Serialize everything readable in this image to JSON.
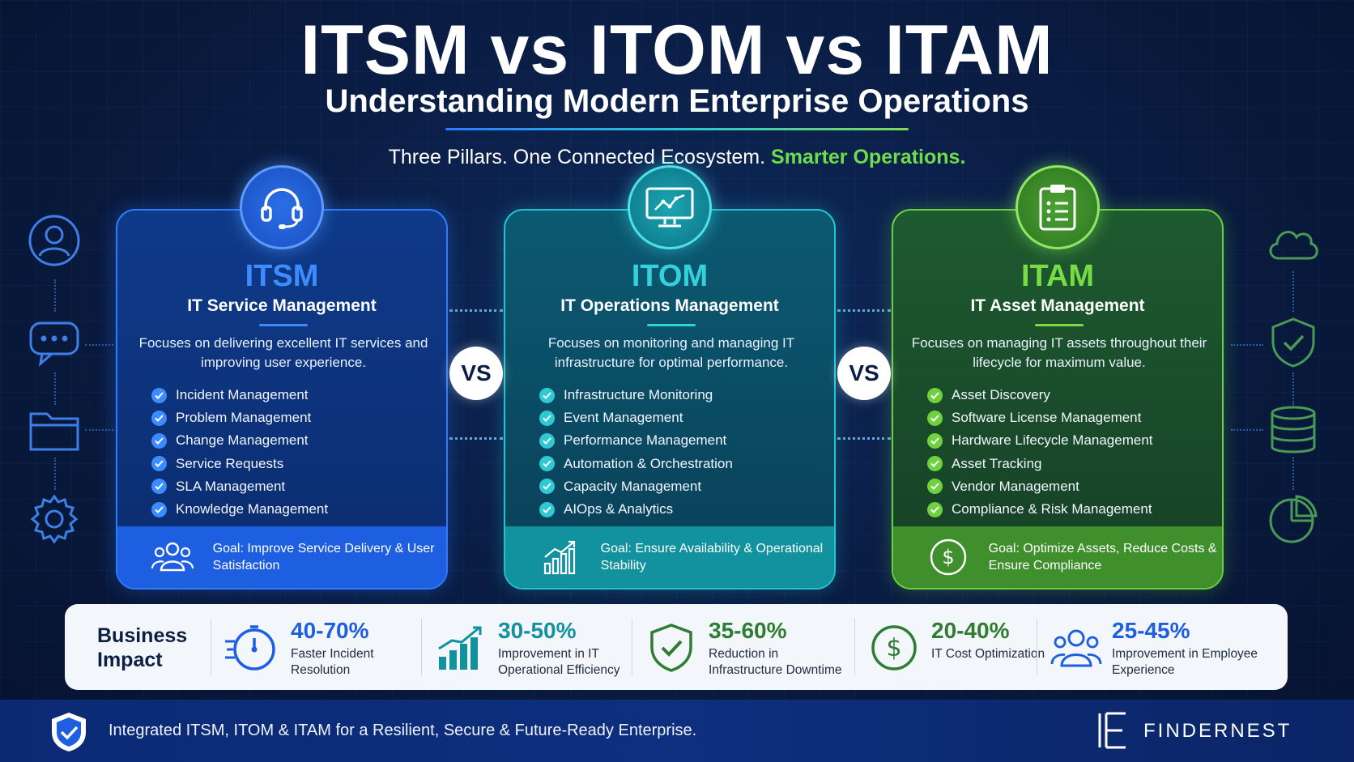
{
  "header": {
    "title": "ITSM vs ITOM vs ITAM",
    "subtitle": "Understanding Modern Enterprise Operations",
    "tagline_main": "Three Pillars. One Connected Ecosystem.",
    "tagline_accent": "Smarter Operations."
  },
  "side_icons": {
    "left": [
      "user-icon",
      "chat-bubble-icon",
      "folder-icon",
      "gear-icon"
    ],
    "right": [
      "cloud-icon",
      "shield-check-icon",
      "database-icon",
      "pie-chart-icon"
    ]
  },
  "vs_label": "VS",
  "cards": [
    {
      "id": "itsm",
      "icon": "headset-icon",
      "name": "ITSM",
      "full_name": "IT Service Management",
      "description": "Focuses on delivering excellent IT services and improving user experience.",
      "items": [
        "Incident Management",
        "Problem Management",
        "Change Management",
        "Service Requests",
        "SLA Management",
        "Knowledge Management"
      ],
      "goal_icon": "users-icon",
      "goal": "Goal: Improve Service Delivery & User Satisfaction",
      "color": "#3d8cff"
    },
    {
      "id": "itom",
      "icon": "monitor-chart-icon",
      "name": "ITOM",
      "full_name": "IT Operations Management",
      "description": "Focuses on monitoring and managing IT infrastructure for optimal performance.",
      "items": [
        "Infrastructure Monitoring",
        "Event Management",
        "Performance Management",
        "Automation & Orchestration",
        "Capacity Management",
        "AIOps & Analytics"
      ],
      "goal_icon": "growth-chart-icon",
      "goal": "Goal: Ensure Availability & Operational Stability",
      "color": "#33d1dc"
    },
    {
      "id": "itam",
      "icon": "clipboard-icon",
      "name": "ITAM",
      "full_name": "IT Asset Management",
      "description": "Focuses on managing IT assets throughout their lifecycle for maximum value.",
      "items": [
        "Asset Discovery",
        "Software License Management",
        "Hardware Lifecycle Management",
        "Asset Tracking",
        "Vendor Management",
        "Compliance & Risk Management"
      ],
      "goal_icon": "dollar-circle-icon",
      "goal": "Goal: Optimize Assets, Reduce Costs & Ensure Compliance",
      "color": "#79db45"
    }
  ],
  "impact": {
    "title": "Business Impact",
    "items": [
      {
        "icon": "stopwatch-icon",
        "value": "40-70%",
        "label": "Faster Incident Resolution",
        "color": "#1d5fe0"
      },
      {
        "icon": "bar-growth-icon",
        "value": "30-50%",
        "label": "Improvement in IT Operational Efficiency",
        "color": "#12919f"
      },
      {
        "icon": "shield-check-icon",
        "value": "35-60%",
        "label": "Reduction in Infrastructure Downtime",
        "color": "#2e7d32"
      },
      {
        "icon": "dollar-circle-icon",
        "value": "20-40%",
        "label": "IT Cost Optimization",
        "color": "#2e7d32"
      },
      {
        "icon": "users-icon",
        "value": "25-45%",
        "label": "Improvement in Employee Experience",
        "color": "#1d5fe0"
      }
    ]
  },
  "footer": {
    "text": "Integrated ITSM, ITOM & ITAM for a Resilient, Secure & Future-Ready Enterprise.",
    "brand": "FINDERNEST",
    "shield_icon": "shield-check-icon"
  }
}
